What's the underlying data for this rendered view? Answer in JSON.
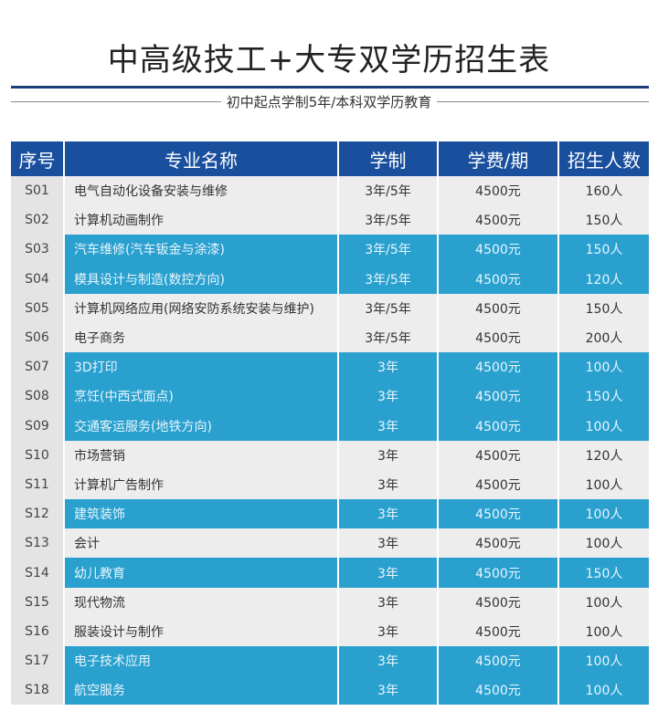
{
  "title": "中高级技工+大专双学历招生表",
  "subtitle": "初中起点学制5年/本科双学历教育",
  "colors": {
    "header": "#1a4f9e",
    "highlight": "#2aa0cf",
    "row": "#ededed"
  },
  "headers": [
    "序号",
    "专业名称",
    "学制",
    "学费/期",
    "招生人数"
  ],
  "rows": [
    {
      "no": "S01",
      "name": "电气自动化设备安装与维修",
      "years": "3年/5年",
      "fee": "4500元",
      "count": "160人",
      "hl": false
    },
    {
      "no": "S02",
      "name": "计算机动画制作",
      "years": "3年/5年",
      "fee": "4500元",
      "count": "150人",
      "hl": false
    },
    {
      "no": "S03",
      "name": "汽车维修(汽车钣金与涂漆)",
      "years": "3年/5年",
      "fee": "4500元",
      "count": "150人",
      "hl": true
    },
    {
      "no": "S04",
      "name": "模具设计与制造(数控方向)",
      "years": "3年/5年",
      "fee": "4500元",
      "count": "120人",
      "hl": true
    },
    {
      "no": "S05",
      "name": "计算机网络应用(网络安防系统安装与维护)",
      "years": "3年/5年",
      "fee": "4500元",
      "count": "150人",
      "hl": false
    },
    {
      "no": "S06",
      "name": "电子商务",
      "years": "3年/5年",
      "fee": "4500元",
      "count": "200人",
      "hl": false
    },
    {
      "no": "S07",
      "name": "3D打印",
      "years": "3年",
      "fee": "4500元",
      "count": "100人",
      "hl": true
    },
    {
      "no": "S08",
      "name": "烹饪(中西式面点)",
      "years": "3年",
      "fee": "4500元",
      "count": "150人",
      "hl": true
    },
    {
      "no": "S09",
      "name": "交通客运服务(地铁方向)",
      "years": "3年",
      "fee": "4500元",
      "count": "100人",
      "hl": true
    },
    {
      "no": "S10",
      "name": "市场营销",
      "years": "3年",
      "fee": "4500元",
      "count": "120人",
      "hl": false
    },
    {
      "no": "S11",
      "name": "计算机广告制作",
      "years": "3年",
      "fee": "4500元",
      "count": "100人",
      "hl": false
    },
    {
      "no": "S12",
      "name": "建筑装饰",
      "years": "3年",
      "fee": "4500元",
      "count": "100人",
      "hl": true
    },
    {
      "no": "S13",
      "name": "会计",
      "years": "3年",
      "fee": "4500元",
      "count": "100人",
      "hl": false
    },
    {
      "no": "S14",
      "name": "幼儿教育",
      "years": "3年",
      "fee": "4500元",
      "count": "150人",
      "hl": true
    },
    {
      "no": "S15",
      "name": "现代物流",
      "years": "3年",
      "fee": "4500元",
      "count": "100人",
      "hl": false
    },
    {
      "no": "S16",
      "name": "服装设计与制作",
      "years": "3年",
      "fee": "4500元",
      "count": "100人",
      "hl": false
    },
    {
      "no": "S17",
      "name": "电子技术应用",
      "years": "3年",
      "fee": "4500元",
      "count": "100人",
      "hl": true
    },
    {
      "no": "S18",
      "name": "航空服务",
      "years": "3年",
      "fee": "4500元",
      "count": "100人",
      "hl": true
    }
  ]
}
